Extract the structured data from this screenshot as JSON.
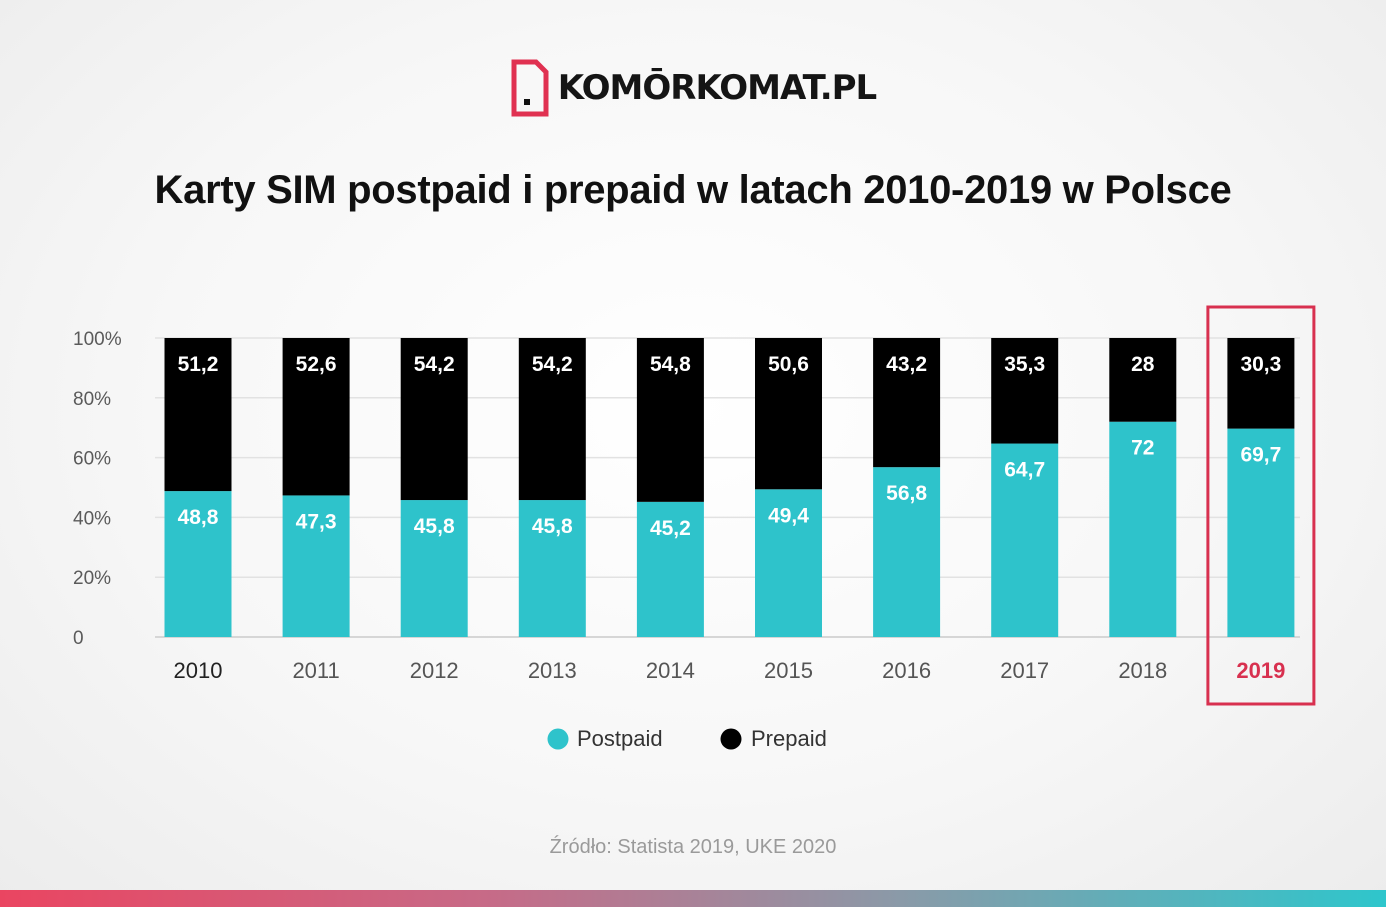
{
  "brand": {
    "name": "KOMŌRKOMAT.PL",
    "accent_color": "#e03151",
    "icon": "sim-card-icon"
  },
  "chart_data": {
    "type": "bar",
    "stacked": true,
    "title": "Karty SIM postpaid i prepaid w latach 2010-2019 w Polsce",
    "categories": [
      "2010",
      "2011",
      "2012",
      "2013",
      "2014",
      "2015",
      "2016",
      "2017",
      "2018",
      "2019"
    ],
    "series": [
      {
        "name": "Postpaid",
        "color": "#2ec3cb",
        "values": [
          48.8,
          47.3,
          45.8,
          45.8,
          45.2,
          49.4,
          56.8,
          64.7,
          72,
          69.7
        ],
        "labels": [
          "48,8",
          "47,3",
          "45,8",
          "45,8",
          "45,2",
          "49,4",
          "56,8",
          "64,7",
          "72",
          "69,7"
        ]
      },
      {
        "name": "Prepaid",
        "color": "#000000",
        "values": [
          51.2,
          52.6,
          54.2,
          54.2,
          54.8,
          50.6,
          43.2,
          35.3,
          28,
          30.3
        ],
        "labels": [
          "51,2",
          "52,6",
          "54,2",
          "54,2",
          "54,8",
          "50,6",
          "43,2",
          "35,3",
          "28",
          "30,3"
        ]
      }
    ],
    "y_ticks": [
      "0",
      "20%",
      "40%",
      "60%",
      "80%",
      "100%"
    ],
    "ylim": [
      0,
      100
    ],
    "grid": true,
    "legend_position": "bottom",
    "highlight_category": "2019",
    "highlight_color": "#d8304f"
  },
  "source": "Źródło: Statista 2019, UKE 2020"
}
